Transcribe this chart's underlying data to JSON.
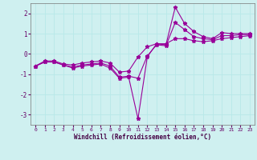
{
  "xlabel": "Windchill (Refroidissement éolien,°C)",
  "bg_color": "#cff0f0",
  "grid_color": "#b8e8e8",
  "line_color": "#990099",
  "x": [
    0,
    1,
    2,
    3,
    4,
    5,
    6,
    7,
    8,
    9,
    10,
    11,
    12,
    13,
    14,
    15,
    16,
    17,
    18,
    19,
    20,
    21,
    22,
    23
  ],
  "line1": [
    -0.6,
    -0.4,
    -0.4,
    -0.55,
    -0.7,
    -0.6,
    -0.55,
    -0.5,
    -0.7,
    -1.2,
    -1.15,
    -3.2,
    -0.15,
    0.5,
    0.45,
    2.3,
    1.5,
    1.1,
    0.85,
    0.75,
    1.05,
    1.0,
    1.0,
    1.0
  ],
  "line2": [
    -0.6,
    -0.4,
    -0.4,
    -0.55,
    -0.65,
    -0.55,
    -0.5,
    -0.45,
    -0.6,
    -1.15,
    -1.1,
    -1.2,
    -0.1,
    0.45,
    0.4,
    1.55,
    1.2,
    0.85,
    0.75,
    0.7,
    0.9,
    0.9,
    0.95,
    0.95
  ],
  "line3": [
    -0.6,
    -0.35,
    -0.35,
    -0.5,
    -0.55,
    -0.45,
    -0.4,
    -0.35,
    -0.45,
    -0.9,
    -0.85,
    -0.15,
    0.35,
    0.5,
    0.5,
    0.75,
    0.75,
    0.65,
    0.6,
    0.65,
    0.75,
    0.8,
    0.85,
    0.9
  ],
  "xlim": [
    -0.5,
    23.5
  ],
  "ylim": [
    -3.5,
    2.5
  ],
  "yticks": [
    -3,
    -2,
    -1,
    0,
    1,
    2
  ],
  "xticks": [
    0,
    1,
    2,
    3,
    4,
    5,
    6,
    7,
    8,
    9,
    10,
    11,
    12,
    13,
    14,
    15,
    16,
    17,
    18,
    19,
    20,
    21,
    22,
    23
  ],
  "xtick_labels": [
    "0",
    "1",
    "2",
    "3",
    "4",
    "5",
    "6",
    "7",
    "8",
    "9",
    "10",
    "11",
    "12",
    "13",
    "14",
    "15",
    "16",
    "17",
    "18",
    "19",
    "20",
    "21",
    "22",
    "23"
  ]
}
